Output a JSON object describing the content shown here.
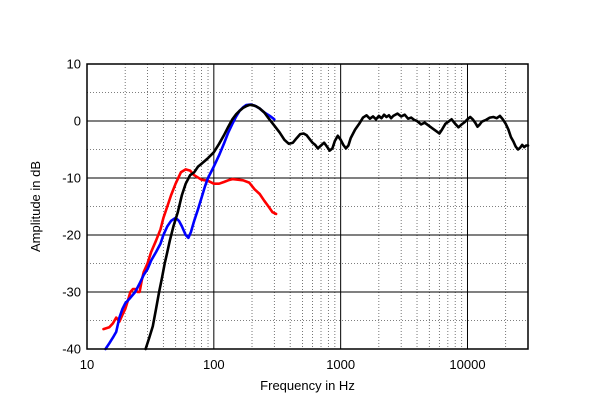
{
  "chart_data": {
    "type": "line",
    "title": "",
    "xlabel": "Frequency  in  Hz",
    "ylabel": "Amplitude in dB",
    "xscale": "log",
    "xlim": [
      10,
      30000
    ],
    "ylim": [
      -40,
      10
    ],
    "grid": true,
    "xticks": [
      {
        "value": 10,
        "label": "10"
      },
      {
        "value": 100,
        "label": "100"
      },
      {
        "value": 1000,
        "label": "1000"
      },
      {
        "value": 10000,
        "label": "10000"
      }
    ],
    "yticks": [
      {
        "value": 10,
        "label": "10"
      },
      {
        "value": 0,
        "label": "0"
      },
      {
        "value": -10,
        "label": "-10"
      },
      {
        "value": -20,
        "label": "-20"
      },
      {
        "value": -30,
        "label": "-30"
      },
      {
        "value": -40,
        "label": "-40"
      }
    ],
    "series": [
      {
        "color": "#ff0000",
        "points": [
          [
            13.5,
            -36.5
          ],
          [
            15,
            -36.2
          ],
          [
            16,
            -35.5
          ],
          [
            17,
            -34.5
          ],
          [
            18,
            -35.2
          ],
          [
            19,
            -34
          ],
          [
            20,
            -33
          ],
          [
            21,
            -31.5
          ],
          [
            22,
            -30
          ],
          [
            23,
            -29.5
          ],
          [
            24,
            -29.5
          ],
          [
            25,
            -30
          ],
          [
            26,
            -30
          ],
          [
            27,
            -28
          ],
          [
            28,
            -26.5
          ],
          [
            30,
            -25
          ],
          [
            32,
            -23
          ],
          [
            35,
            -21
          ],
          [
            38,
            -19
          ],
          [
            40,
            -17
          ],
          [
            43,
            -15
          ],
          [
            46,
            -13
          ],
          [
            50,
            -11
          ],
          [
            55,
            -9
          ],
          [
            60,
            -8.5
          ],
          [
            65,
            -8.7
          ],
          [
            70,
            -9.5
          ],
          [
            80,
            -10.3
          ],
          [
            90,
            -10.5
          ],
          [
            100,
            -11
          ],
          [
            110,
            -11
          ],
          [
            120,
            -10.7
          ],
          [
            130,
            -10.4
          ],
          [
            140,
            -10.2
          ],
          [
            155,
            -10.3
          ],
          [
            170,
            -10.4
          ],
          [
            190,
            -10.8
          ],
          [
            210,
            -12
          ],
          [
            230,
            -12.8
          ],
          [
            250,
            -14
          ],
          [
            270,
            -15
          ],
          [
            290,
            -16
          ],
          [
            310,
            -16.3
          ]
        ]
      },
      {
        "color": "#0000ff",
        "points": [
          [
            14,
            -40
          ],
          [
            15,
            -39
          ],
          [
            16,
            -38
          ],
          [
            17,
            -37
          ],
          [
            18,
            -34.5
          ],
          [
            19,
            -33
          ],
          [
            20,
            -32
          ],
          [
            22,
            -31
          ],
          [
            24,
            -30
          ],
          [
            26,
            -28.5
          ],
          [
            28,
            -27
          ],
          [
            30,
            -26
          ],
          [
            32,
            -24.5
          ],
          [
            35,
            -23
          ],
          [
            38,
            -21.5
          ],
          [
            40,
            -20
          ],
          [
            43,
            -18.5
          ],
          [
            46,
            -17.5
          ],
          [
            50,
            -17
          ],
          [
            53,
            -17.5
          ],
          [
            56,
            -18.5
          ],
          [
            60,
            -20
          ],
          [
            63,
            -20.5
          ],
          [
            66,
            -19.5
          ],
          [
            70,
            -17.5
          ],
          [
            75,
            -15.5
          ],
          [
            80,
            -13.5
          ],
          [
            85,
            -11.5
          ],
          [
            90,
            -10
          ],
          [
            100,
            -8
          ],
          [
            110,
            -6
          ],
          [
            120,
            -4
          ],
          [
            130,
            -2
          ],
          [
            140,
            -0.5
          ],
          [
            150,
            0.8
          ],
          [
            160,
            1.8
          ],
          [
            170,
            2.4
          ],
          [
            180,
            2.8
          ],
          [
            195,
            2.9
          ],
          [
            210,
            2.7
          ],
          [
            230,
            2.2
          ],
          [
            250,
            1.5
          ],
          [
            280,
            0.8
          ],
          [
            300,
            0.3
          ]
        ]
      },
      {
        "color": "#000000",
        "points": [
          [
            29,
            -40
          ],
          [
            31,
            -38
          ],
          [
            33,
            -36
          ],
          [
            35,
            -33
          ],
          [
            37,
            -30
          ],
          [
            39,
            -27.5
          ],
          [
            41,
            -25
          ],
          [
            43,
            -23
          ],
          [
            45,
            -21
          ],
          [
            48,
            -18.5
          ],
          [
            52,
            -16
          ],
          [
            56,
            -13
          ],
          [
            60,
            -11
          ],
          [
            65,
            -9.5
          ],
          [
            70,
            -9
          ],
          [
            75,
            -8
          ],
          [
            80,
            -7.5
          ],
          [
            85,
            -7
          ],
          [
            90,
            -6.5
          ],
          [
            100,
            -5.5
          ],
          [
            110,
            -4
          ],
          [
            120,
            -2.5
          ],
          [
            130,
            -1
          ],
          [
            140,
            0.3
          ],
          [
            150,
            1.2
          ],
          [
            160,
            1.8
          ],
          [
            170,
            2.3
          ],
          [
            180,
            2.6
          ],
          [
            190,
            2.8
          ],
          [
            200,
            2.8
          ],
          [
            215,
            2.6
          ],
          [
            230,
            2.2
          ],
          [
            250,
            1.5
          ],
          [
            270,
            0.5
          ],
          [
            300,
            -0.8
          ],
          [
            330,
            -2
          ],
          [
            360,
            -3.3
          ],
          [
            390,
            -4
          ],
          [
            420,
            -3.8
          ],
          [
            450,
            -3
          ],
          [
            480,
            -2.3
          ],
          [
            510,
            -2.2
          ],
          [
            540,
            -2.5
          ],
          [
            570,
            -3.2
          ],
          [
            600,
            -3.8
          ],
          [
            630,
            -4.2
          ],
          [
            660,
            -4.8
          ],
          [
            700,
            -4.3
          ],
          [
            740,
            -3.8
          ],
          [
            780,
            -4.5
          ],
          [
            820,
            -5.2
          ],
          [
            860,
            -4.8
          ],
          [
            900,
            -3.5
          ],
          [
            950,
            -2.6
          ],
          [
            1000,
            -3.3
          ],
          [
            1050,
            -4.2
          ],
          [
            1100,
            -4.8
          ],
          [
            1150,
            -4.3
          ],
          [
            1200,
            -3
          ],
          [
            1300,
            -1.5
          ],
          [
            1400,
            -0.5
          ],
          [
            1500,
            0.6
          ],
          [
            1600,
            1
          ],
          [
            1700,
            0.4
          ],
          [
            1800,
            0.8
          ],
          [
            1900,
            0.3
          ],
          [
            2000,
            0.9
          ],
          [
            2100,
            0.5
          ],
          [
            2200,
            1.1
          ],
          [
            2300,
            0.7
          ],
          [
            2400,
            1
          ],
          [
            2500,
            0.5
          ],
          [
            2600,
            0.9
          ],
          [
            2800,
            1.3
          ],
          [
            3000,
            0.8
          ],
          [
            3200,
            1.1
          ],
          [
            3400,
            0.4
          ],
          [
            3600,
            0.6
          ],
          [
            3800,
            0.2
          ],
          [
            4000,
            0
          ],
          [
            4300,
            -0.6
          ],
          [
            4600,
            -0.3
          ],
          [
            5000,
            -0.9
          ],
          [
            5300,
            -1.3
          ],
          [
            5700,
            -1.8
          ],
          [
            6000,
            -2.2
          ],
          [
            6300,
            -1.5
          ],
          [
            6700,
            -0.5
          ],
          [
            7000,
            -0.2
          ],
          [
            7500,
            0.3
          ],
          [
            8000,
            -0.5
          ],
          [
            8500,
            -1.1
          ],
          [
            9000,
            -0.6
          ],
          [
            9500,
            -0.2
          ],
          [
            10000,
            0.3
          ],
          [
            10500,
            0.7
          ],
          [
            11000,
            0.3
          ],
          [
            11500,
            -0.3
          ],
          [
            12000,
            -1
          ],
          [
            12500,
            -0.6
          ],
          [
            13000,
            -0.1
          ],
          [
            14000,
            0.2
          ],
          [
            15000,
            0.6
          ],
          [
            16000,
            0.7
          ],
          [
            17000,
            0.5
          ],
          [
            18000,
            0.9
          ],
          [
            19000,
            0.3
          ],
          [
            20000,
            -0.5
          ],
          [
            21000,
            -1.5
          ],
          [
            22000,
            -2.8
          ],
          [
            23000,
            -3.6
          ],
          [
            24000,
            -4.5
          ],
          [
            25000,
            -5
          ],
          [
            26000,
            -4.7
          ],
          [
            27000,
            -4.2
          ],
          [
            28000,
            -4.6
          ],
          [
            29000,
            -4.3
          ],
          [
            30000,
            -4.3
          ]
        ]
      }
    ]
  }
}
